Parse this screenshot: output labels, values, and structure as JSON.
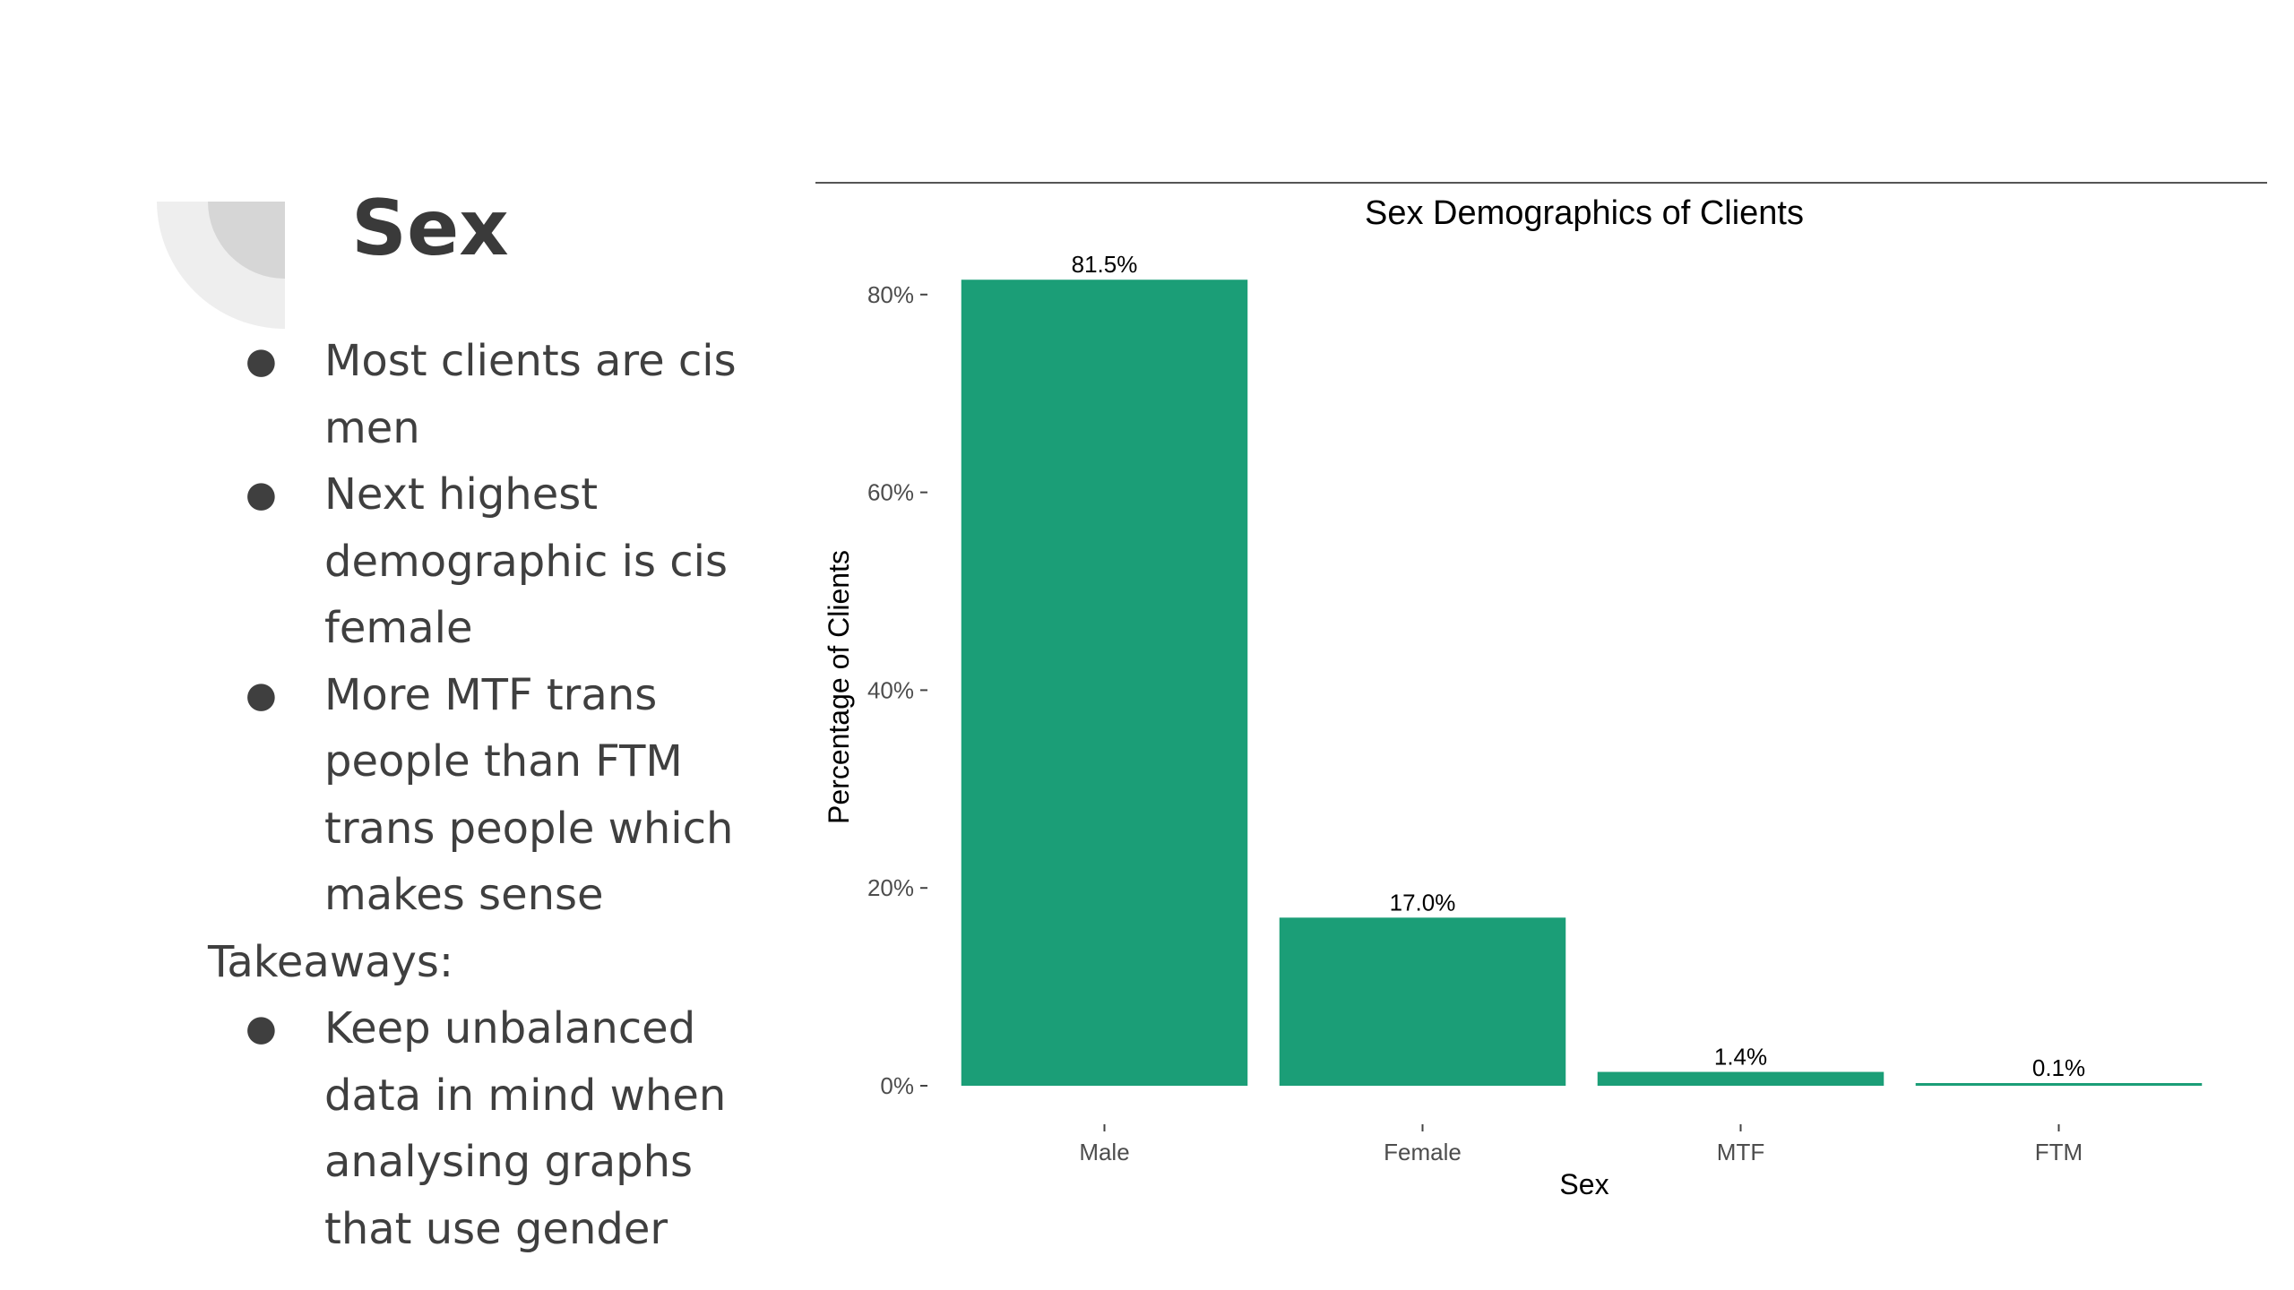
{
  "slide": {
    "title": "Sex",
    "bullets_top": [
      "Most clients are cis men",
      "Next highest demographic is cis female",
      "More MTF trans people than FTM trans people which makes sense"
    ],
    "takeaways_label": "Takeaways:",
    "bullets_bottom": [
      "Keep unbalanced data in mind when analysing graphs that use gender"
    ],
    "bullet_glyph": "●"
  },
  "chart_data": {
    "type": "bar",
    "title": "Sex Demographics of Clients",
    "xlabel": "Sex",
    "ylabel": "Percentage of Clients",
    "categories": [
      "Male",
      "Female",
      "MTF",
      "FTM"
    ],
    "values": [
      81.5,
      17.0,
      1.4,
      0.1
    ],
    "data_labels": [
      "81.5%",
      "17.0%",
      "1.4%",
      "0.1%"
    ],
    "yticks": [
      0,
      20,
      40,
      60,
      80
    ],
    "ytick_labels": [
      "0%",
      "20%",
      "40%",
      "60%",
      "80%"
    ],
    "ylim": [
      0,
      85
    ],
    "bar_color": "#1b9e77",
    "grid": false,
    "legend": "none"
  }
}
